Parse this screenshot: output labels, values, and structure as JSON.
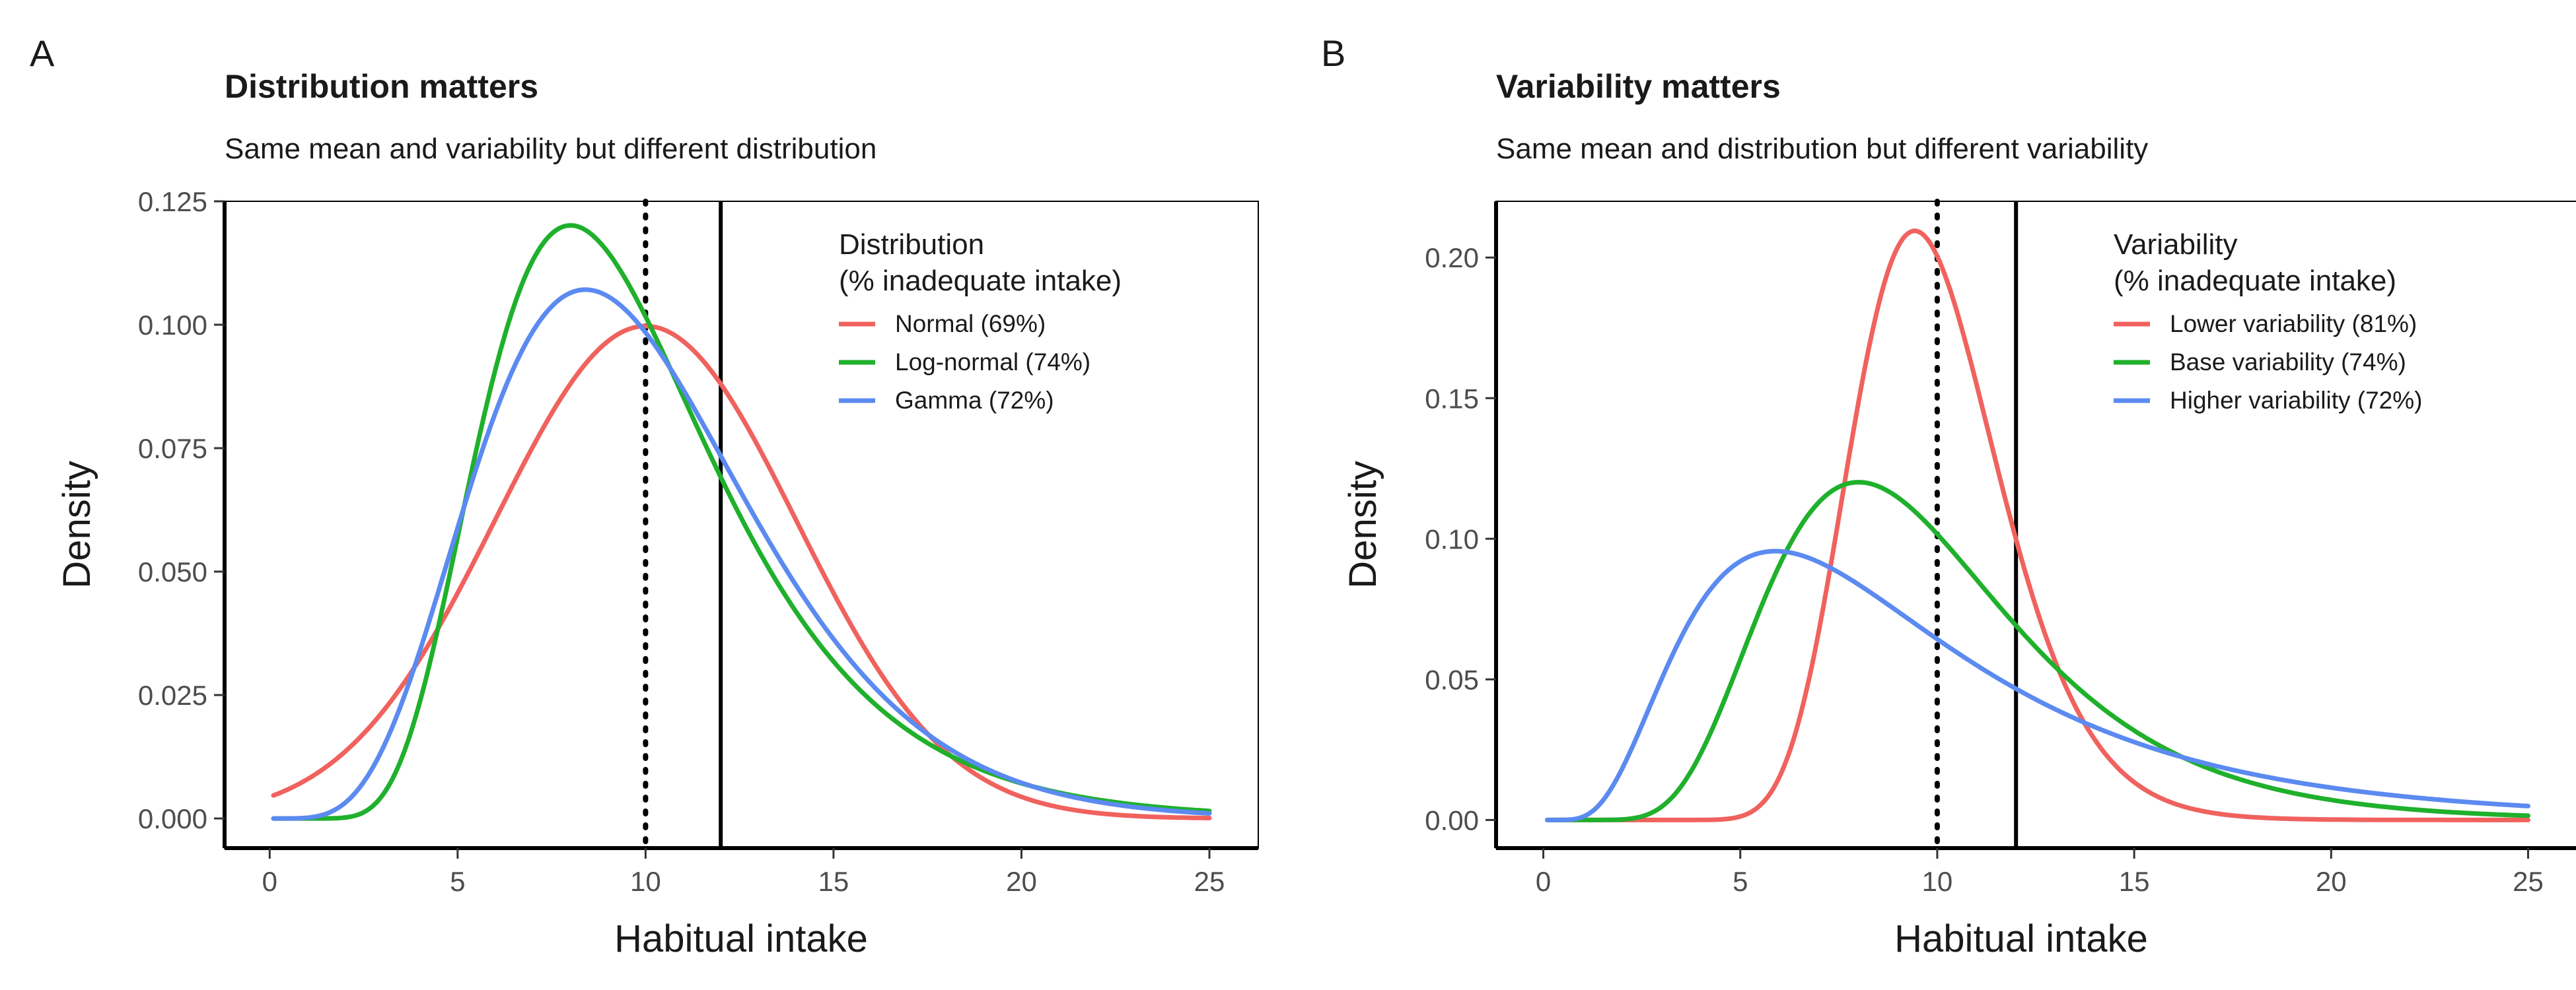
{
  "chart_data": [
    {
      "type": "line",
      "panel_label": "A",
      "title": "Distribution matters",
      "subtitle": "Same mean and variability but different distribution",
      "xlabel": "Habitual intake",
      "ylabel": "Density",
      "xlim": [
        -1.2,
        26.3
      ],
      "ylim": [
        -0.006,
        0.125
      ],
      "x_ticks": [
        0,
        5,
        10,
        15,
        20,
        25
      ],
      "x_tick_labels": [
        "0",
        "5",
        "10",
        "15",
        "20",
        "25"
      ],
      "y_ticks": [
        0,
        0.025,
        0.05,
        0.075,
        0.1,
        0.125
      ],
      "y_tick_labels": [
        "0.000",
        "0.025",
        "0.050",
        "0.075",
        "0.100",
        "0.125"
      ],
      "reference_lines": [
        {
          "x": 10,
          "style": "dotted"
        },
        {
          "x": 12,
          "style": "solid"
        }
      ],
      "legend": {
        "title_line1": "Distribution",
        "title_line2": "(% inadequate intake)",
        "position": "top-right"
      },
      "series": [
        {
          "name": "Normal (69%)",
          "color": "#f0625e",
          "dist": "normal",
          "params": {
            "mean": 10,
            "sd": 4
          }
        },
        {
          "name": "Log-normal (74%)",
          "color": "#1fb02c",
          "dist": "lognormal",
          "params": {
            "mean": 10,
            "sd": 4
          }
        },
        {
          "name": "Gamma (72%)",
          "color": "#5b8af0",
          "dist": "gamma",
          "params": {
            "mean": 10,
            "sd": 4
          }
        }
      ]
    },
    {
      "type": "line",
      "panel_label": "B",
      "title": "Variability matters",
      "subtitle": "Same mean and distribution but different variability",
      "xlabel": "Habitual intake",
      "ylabel": "Density",
      "xlim": [
        -1.2,
        26.3
      ],
      "ylim": [
        -0.01,
        0.22
      ],
      "x_ticks": [
        0,
        5,
        10,
        15,
        20,
        25
      ],
      "x_tick_labels": [
        "0",
        "5",
        "10",
        "15",
        "20",
        "25"
      ],
      "y_ticks": [
        0,
        0.05,
        0.1,
        0.15,
        0.2
      ],
      "y_tick_labels": [
        "0.00",
        "0.05",
        "0.10",
        "0.15",
        "0.20"
      ],
      "reference_lines": [
        {
          "x": 10,
          "style": "dotted"
        },
        {
          "x": 12,
          "style": "solid"
        }
      ],
      "legend": {
        "title_line1": "Variability",
        "title_line2": "(% inadequate intake)",
        "position": "top-right"
      },
      "series": [
        {
          "name": "Lower variability (81%)",
          "color": "#f0625e",
          "dist": "lognormal",
          "params": {
            "mean": 10,
            "sd": 2
          }
        },
        {
          "name": "Base variability (74%)",
          "color": "#1fb02c",
          "dist": "lognormal",
          "params": {
            "mean": 10,
            "sd": 4
          }
        },
        {
          "name": "Higher variability (72%)",
          "color": "#5b8af0",
          "dist": "lognormal",
          "params": {
            "mean": 10,
            "sd": 6.5
          }
        }
      ]
    }
  ]
}
